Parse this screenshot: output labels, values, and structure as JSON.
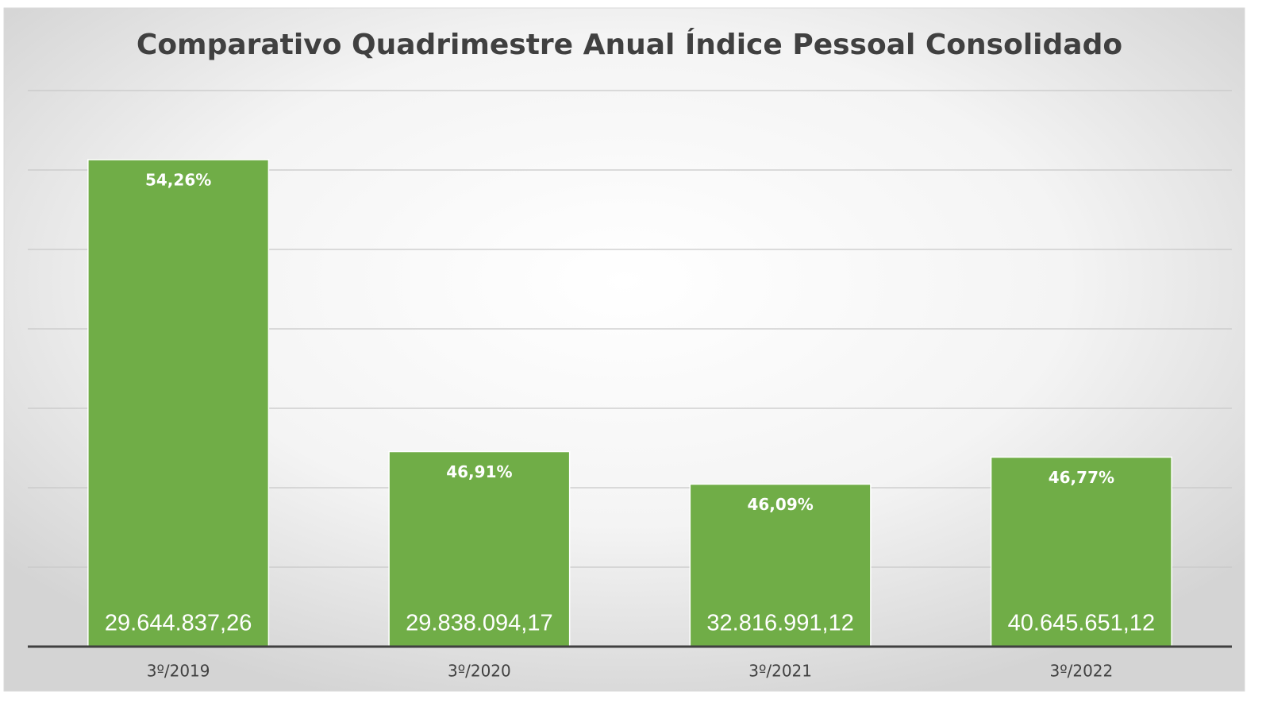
{
  "chart_data": {
    "type": "bar",
    "title": "Comparativo Quadrimestre Anual Índice Pessoal Consolidado",
    "categories": [
      "3º/2019",
      "3º/2020",
      "3º/2021",
      "3º/2022"
    ],
    "values": [
      54.26,
      46.91,
      46.09,
      46.77
    ],
    "value_labels": [
      "54,26%",
      "46,91%",
      "46,09%",
      "46,77%"
    ],
    "amounts": [
      29644837.26,
      29838094.17,
      32816991.12,
      40645651.12
    ],
    "amount_labels": [
      "29.644.837,26",
      "29.838.094,17",
      "32.816.991,12",
      "40.645.651,12"
    ],
    "color": "#70ad47",
    "ylim": [
      42,
      56
    ],
    "yticks": [
      42,
      44,
      46,
      48,
      50,
      52,
      54,
      56
    ],
    "grid": true
  }
}
